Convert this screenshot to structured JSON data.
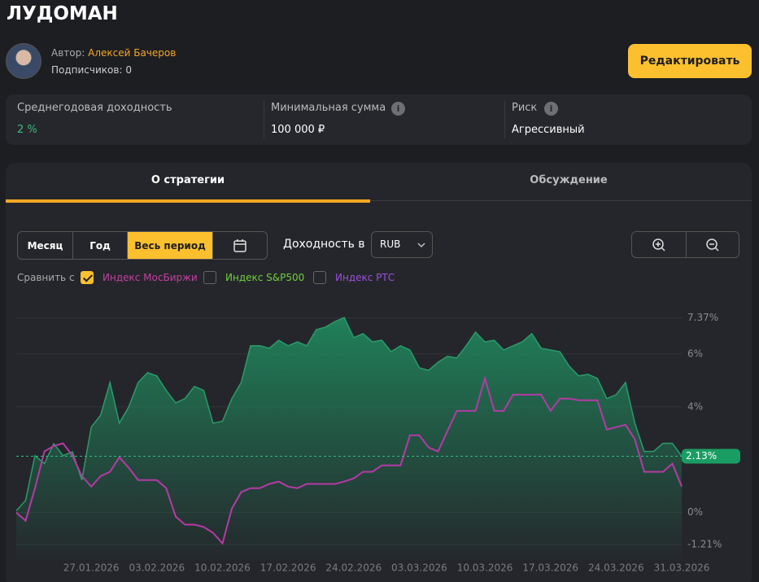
{
  "header": {
    "title": "ЛУДОМАН",
    "author_label": "Автор:",
    "author": "Алексей Бачеров",
    "subscribers": "Подписчиков: 0",
    "edit_button": "Редактировать"
  },
  "stats": [
    {
      "label": "Среднегодовая доходность",
      "value": "2 %"
    },
    {
      "label": "Минимальная сумма",
      "value": "100 000 ₽"
    },
    {
      "label": "Риск",
      "value": "Агрессивный"
    }
  ],
  "tabs": [
    "О стратегии",
    "Обсуждение"
  ],
  "periods": [
    "Месяц",
    "Год",
    "Весь период"
  ],
  "yield_label": "Доходность в",
  "currency": "RUB",
  "compare_label": "Сравнить с",
  "compare": [
    {
      "name": "Индекс МосБиржи",
      "checked": true,
      "color": "#c2409f"
    },
    {
      "name": "Индекс S&P500",
      "checked": false,
      "color": "#6fcf3b"
    },
    {
      "name": "Индекс РТС",
      "checked": false,
      "color": "#9b4fdc"
    }
  ],
  "chart_data": {
    "type": "area",
    "x": [
      "19.01.2026",
      "20.01.2026",
      "21.01.2026",
      "22.01.2026",
      "23.01.2026",
      "24.01.2026",
      "25.01.2026",
      "26.01.2026",
      "27.01.2026",
      "28.01.2026",
      "29.01.2026",
      "30.01.2026",
      "31.01.2026",
      "01.02.2026",
      "02.02.2026",
      "03.02.2026",
      "04.02.2026",
      "05.02.2026",
      "06.02.2026",
      "07.02.2026",
      "08.02.2026",
      "09.02.2026",
      "10.02.2026",
      "11.02.2026",
      "12.02.2026",
      "13.02.2026",
      "14.02.2026",
      "15.02.2026",
      "16.02.2026",
      "17.02.2026",
      "18.02.2026",
      "19.02.2026",
      "20.02.2026",
      "21.02.2026",
      "22.02.2026",
      "23.02.2026",
      "24.02.2026",
      "25.02.2026",
      "26.02.2026",
      "27.02.2026",
      "28.02.2026",
      "01.03.2026",
      "02.03.2026",
      "03.03.2026",
      "04.03.2026",
      "05.03.2026",
      "06.03.2026",
      "07.03.2026",
      "08.03.2026",
      "09.03.2026",
      "10.03.2026",
      "11.03.2026",
      "12.03.2026",
      "13.03.2026",
      "14.03.2026",
      "15.03.2026",
      "16.03.2026",
      "17.03.2026",
      "18.03.2026",
      "19.03.2026",
      "20.03.2026",
      "21.03.2026",
      "22.03.2026",
      "23.03.2026",
      "24.03.2026",
      "25.03.2026",
      "26.03.2026",
      "27.03.2026",
      "28.03.2026",
      "29.03.2026",
      "30.03.2026",
      "31.03.2026"
    ],
    "series": [
      {
        "color": "#2b9b6b",
        "values": [
          0.06,
          0.46,
          2.15,
          1.85,
          2.6,
          2.15,
          2.3,
          1.23,
          3.23,
          3.69,
          4.92,
          3.38,
          4.0,
          4.92,
          5.29,
          5.17,
          4.62,
          4.15,
          4.31,
          4.77,
          4.62,
          3.38,
          3.45,
          4.31,
          4.92,
          6.31,
          6.31,
          6.22,
          6.52,
          6.31,
          6.46,
          6.31,
          6.92,
          7.02,
          7.23,
          7.38,
          6.62,
          6.77,
          6.46,
          6.52,
          6.09,
          6.31,
          6.15,
          5.48,
          5.38,
          5.69,
          5.91,
          5.85,
          6.31,
          6.83,
          6.46,
          6.52,
          6.15,
          6.31,
          6.46,
          6.77,
          6.22,
          6.15,
          6.09,
          5.54,
          5.17,
          5.23,
          5.08,
          4.31,
          4.46,
          4.92,
          3.38,
          2.31,
          2.31,
          2.62,
          2.62,
          2.13
        ]
      },
      {
        "color": "#b53aa6",
        "values": [
          0,
          -0.31,
          0.92,
          2.31,
          2.52,
          2.62,
          2.15,
          1.38,
          0.98,
          1.38,
          1.54,
          2.09,
          1.69,
          1.23,
          1.23,
          1.23,
          0.92,
          -0.15,
          -0.46,
          -0.46,
          -0.55,
          -0.77,
          -1.17,
          0.15,
          0.77,
          0.92,
          0.92,
          1.08,
          1.17,
          0.98,
          0.92,
          1.08,
          1.08,
          1.08,
          1.08,
          1.17,
          1.29,
          1.54,
          1.54,
          1.78,
          1.78,
          1.78,
          2.92,
          2.92,
          2.46,
          2.31,
          3.08,
          3.85,
          3.85,
          3.85,
          5.08,
          3.85,
          3.85,
          4.46,
          4.46,
          4.46,
          4.46,
          3.85,
          4.31,
          4.31,
          4.25,
          4.25,
          4.25,
          3.14,
          3.23,
          3.32,
          2.77,
          1.54,
          1.54,
          1.54,
          1.85,
          0.98
        ]
      }
    ],
    "xticks": [
      "27.01.2026",
      "03.02.2026",
      "10.02.2026",
      "17.02.2026",
      "24.02.2026",
      "03.03.2026",
      "10.03.2026",
      "17.03.2026",
      "24.03.2026",
      "31.03.2026"
    ],
    "ylim": [
      -1.8,
      8
    ],
    "yticks": [
      {
        "value": 7.37,
        "label": "7.37%"
      },
      {
        "value": 6,
        "label": "6%"
      },
      {
        "value": 4,
        "label": "4%"
      },
      {
        "value": 0,
        "label": "0%"
      },
      {
        "value": -1.21,
        "label": "-1.21%"
      }
    ],
    "current": {
      "value": 2.13,
      "label": "2.13%"
    },
    "grid": true
  }
}
